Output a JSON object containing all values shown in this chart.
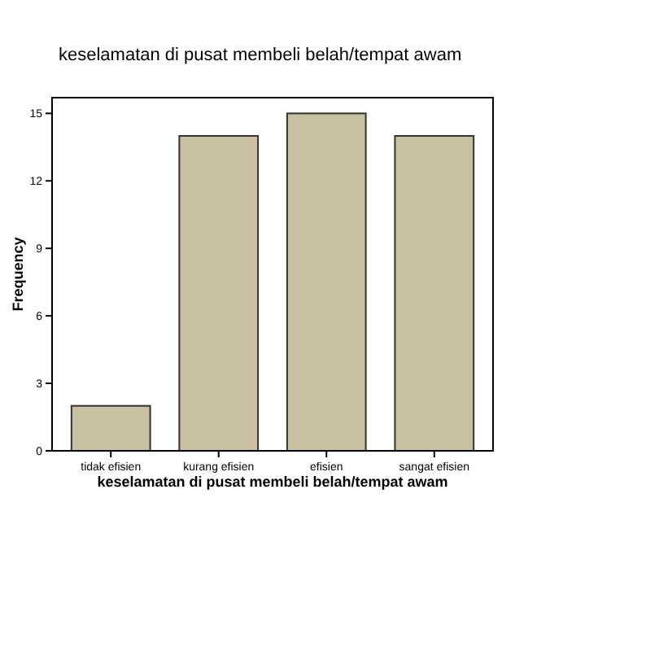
{
  "chart_data": {
    "type": "bar",
    "title": "keselamatan di pusat membeli belah/tempat awam",
    "xlabel": "keselamatan di pusat membeli belah/tempat awam",
    "ylabel": "Frequency",
    "categories": [
      "tidak efisien",
      "kurang efisien",
      "efisien",
      "sangat efisien"
    ],
    "values": [
      2,
      14,
      15,
      14
    ],
    "color": "#c8c0a0",
    "ylim": [
      0,
      15.7
    ],
    "yticks": [
      0,
      3,
      6,
      9,
      12,
      15
    ],
    "grid": false
  }
}
